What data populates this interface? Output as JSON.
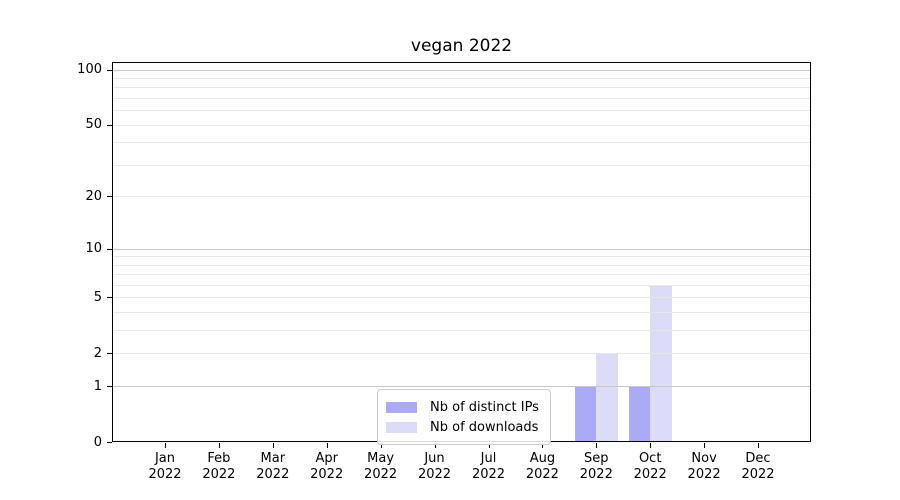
{
  "chart_data": {
    "type": "bar",
    "title": "vegan 2022",
    "categories": [
      "Jan",
      "Feb",
      "Mar",
      "Apr",
      "May",
      "Jun",
      "Jul",
      "Aug",
      "Sep",
      "Oct",
      "Nov",
      "Dec"
    ],
    "category_year": "2022",
    "series": [
      {
        "name": "Nb of distinct IPs",
        "color": "#aaaaf5",
        "values": [
          0,
          0,
          0,
          0,
          0,
          0,
          0,
          0,
          1,
          1,
          0,
          0
        ]
      },
      {
        "name": "Nb of downloads",
        "color": "#dcdcf7",
        "values": [
          0,
          0,
          0,
          0,
          0,
          0,
          0,
          0,
          2,
          6,
          0,
          0
        ]
      }
    ],
    "xlabel": "",
    "ylabel": "",
    "yscale": "symlog",
    "ylim": [
      0,
      110
    ],
    "yticks": [
      0,
      1,
      2,
      5,
      10,
      20,
      50,
      100
    ],
    "major_gridlines": [
      1,
      10,
      100
    ],
    "minor_gridlines": [
      2,
      3,
      4,
      5,
      6,
      7,
      8,
      9,
      20,
      30,
      40,
      50,
      60,
      70,
      80,
      90
    ],
    "grid": true,
    "legend_position": "lower-center",
    "colors": {
      "major_grid": "#c6c6c6",
      "minor_grid": "#e8e8e8",
      "axis": "#000000",
      "background": "#ffffff",
      "text": "#000000"
    }
  }
}
